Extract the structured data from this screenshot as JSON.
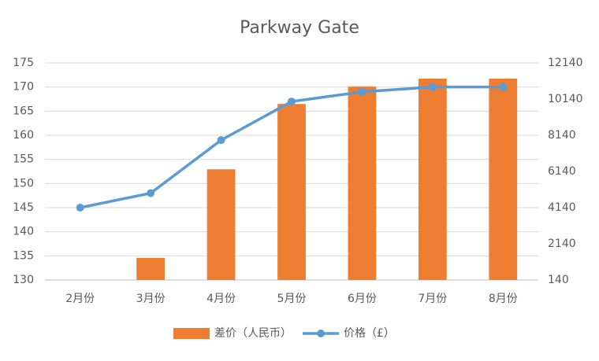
{
  "chart_data": {
    "type": "bar-line",
    "title": "Parkway Gate",
    "categories": [
      "2月份",
      "3月份",
      "4月份",
      "5月份",
      "6月份",
      "7月份",
      "8月份"
    ],
    "series": [
      {
        "name": "差价（人民币）",
        "type": "bar",
        "axis": "y2",
        "color": "#ed7d31",
        "values": [
          null,
          1360,
          6260,
          9870,
          10830,
          11270,
          11270
        ]
      },
      {
        "name": "价格（£）",
        "type": "line",
        "axis": "y",
        "color": "#5b9bd5",
        "values": [
          145,
          148,
          159,
          167,
          169,
          170,
          170
        ]
      }
    ],
    "ylim": [
      130,
      175
    ],
    "yticks": [
      130,
      135,
      140,
      145,
      150,
      155,
      160,
      165,
      170,
      175
    ],
    "y2lim": [
      140,
      12140
    ],
    "y2ticks": [
      140,
      2140,
      4140,
      6140,
      8140,
      10140,
      12140
    ],
    "grid": true,
    "legend": "bottom"
  }
}
